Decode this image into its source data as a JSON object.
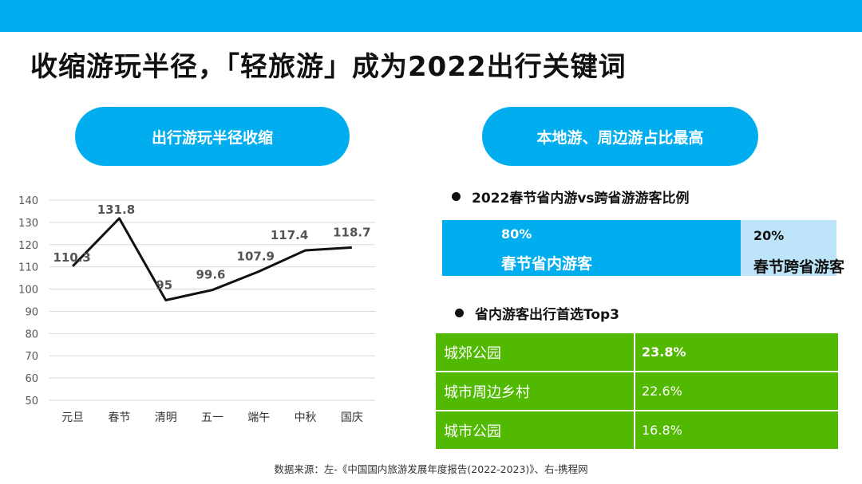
{
  "title": "收缩游玩半径，「轻旅游」成为2022出行关键词",
  "left_header": "出行游玩半径收缩",
  "right_header": "本地游、周边游占比最高",
  "colors": {
    "accent": "#00AEEF",
    "light_accent": "#BDE4F8",
    "green": "#52B902",
    "line": "#111111"
  },
  "chart_data": {
    "type": "line",
    "categories": [
      "元旦",
      "春节",
      "清明",
      "五一",
      "端午",
      "中秋",
      "国庆"
    ],
    "values": [
      110.3,
      131.8,
      95,
      99.6,
      107.9,
      117.4,
      118.7
    ],
    "data_labels": [
      "110.3",
      "131.8",
      "95",
      "99.6",
      "107.9",
      "117.4",
      "118.7"
    ],
    "yticks": [
      "140",
      "130",
      "120",
      "110",
      "100",
      "90",
      "80",
      "70",
      "60",
      "50"
    ],
    "ylim": [
      50,
      140
    ],
    "grid": true,
    "title": "",
    "xlabel": "",
    "ylabel": ""
  },
  "ratio": {
    "heading": "2022春节省内游vs跨省游游客比例",
    "in_pct": "80%",
    "in_label": "春节省内游客",
    "out_pct": "20%",
    "out_label": "春节跨省游客",
    "in_value": 80,
    "out_value": 20
  },
  "top3": {
    "heading": "省内游客出行首选Top3",
    "rows": [
      {
        "name": "城郊公园",
        "value": "23.8%"
      },
      {
        "name": "城市周边乡村",
        "value": "22.6%"
      },
      {
        "name": "城市公园",
        "value": "16.8%"
      }
    ]
  },
  "source": "数据来源：左-《中国国内旅游发展年度报告(2022-2023)》、右-携程网"
}
